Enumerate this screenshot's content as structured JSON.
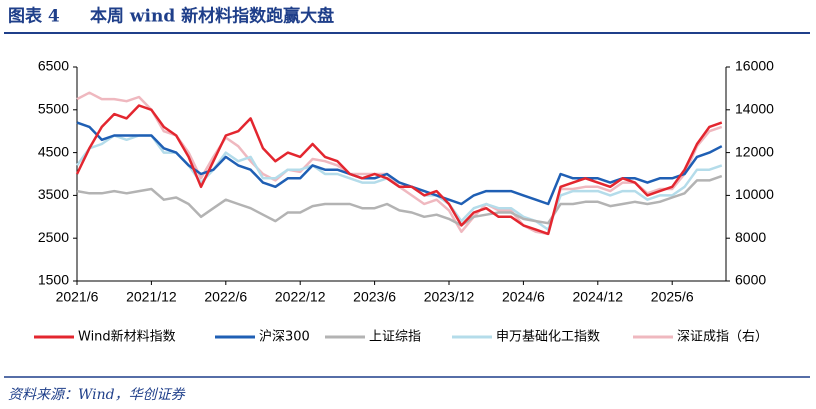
{
  "chart_data": {
    "type": "line",
    "figure_label": "图表 4",
    "title": "本周 wind 新材料指数跑赢大盘",
    "source": "资料来源：Wind，华创证券",
    "categories": [
      "2021/6",
      null,
      null,
      null,
      null,
      null,
      "2021/12",
      null,
      null,
      null,
      null,
      null,
      "2022/6",
      null,
      null,
      null,
      null,
      null,
      "2022/12",
      null,
      null,
      null,
      null,
      null,
      "2023/6",
      null,
      null,
      null,
      null,
      null,
      "2023/12",
      null,
      null,
      null,
      null,
      null,
      "2024/6",
      null,
      null,
      null,
      null,
      null,
      "2024/12",
      null,
      null,
      null,
      null,
      null,
      "2025/6",
      null,
      null,
      null,
      null
    ],
    "ylim": [
      1500,
      6500
    ],
    "yticks": [
      1500,
      2500,
      3500,
      4500,
      5500,
      6500
    ],
    "y2lim": [
      6000,
      16000
    ],
    "y2ticks": [
      6000,
      8000,
      10000,
      12000,
      14000,
      16000
    ],
    "series": [
      {
        "name": "Wind新材料指数",
        "color": "#e3262f",
        "values": [
          4000,
          4600,
          5100,
          5400,
          5300,
          5600,
          5500,
          5100,
          4900,
          4400,
          3700,
          4300,
          4900,
          5000,
          5300,
          4600,
          4300,
          4500,
          4400,
          4700,
          4400,
          4300,
          4000,
          3900,
          4000,
          3900,
          3700,
          3700,
          3500,
          3600,
          3300,
          2800,
          3100,
          3200,
          3000,
          3000,
          2800,
          2700,
          2600,
          3700,
          3800,
          3900,
          3800,
          3700,
          3900,
          3800,
          3500,
          3600,
          3700,
          4100,
          4700,
          5100,
          5200
        ]
      },
      {
        "name": "沪深300",
        "color": "#1f5fb4",
        "values": [
          5200,
          5100,
          4800,
          4900,
          4900,
          4900,
          4900,
          4600,
          4500,
          4200,
          4000,
          4100,
          4400,
          4200,
          4100,
          3800,
          3700,
          3900,
          3900,
          4200,
          4100,
          4100,
          4000,
          3900,
          3900,
          4000,
          3800,
          3700,
          3600,
          3500,
          3400,
          3300,
          3500,
          3600,
          3600,
          3600,
          3500,
          3400,
          3300,
          4000,
          3900,
          3900,
          3900,
          3800,
          3900,
          3900,
          3800,
          3900,
          3900,
          4000,
          4400,
          4500,
          4650
        ]
      },
      {
        "name": "上证综指",
        "color": "#b3b3b3",
        "values": [
          3600,
          3550,
          3550,
          3600,
          3550,
          3600,
          3650,
          3400,
          3450,
          3300,
          3000,
          3200,
          3400,
          3300,
          3200,
          3050,
          2900,
          3100,
          3100,
          3250,
          3300,
          3300,
          3300,
          3200,
          3200,
          3300,
          3150,
          3100,
          3000,
          3050,
          2950,
          2800,
          3000,
          3050,
          3100,
          3100,
          2950,
          2900,
          2850,
          3300,
          3300,
          3350,
          3350,
          3250,
          3300,
          3350,
          3300,
          3350,
          3450,
          3550,
          3850,
          3850,
          3950
        ]
      },
      {
        "name": "申万基础化工指数",
        "color": "#b4dcea",
        "values": [
          4200,
          4600,
          4700,
          4900,
          4800,
          4900,
          4900,
          4500,
          4500,
          4200,
          3800,
          4100,
          4500,
          4300,
          4400,
          3900,
          3900,
          4100,
          4100,
          4200,
          4000,
          4000,
          3900,
          3800,
          3800,
          3900,
          3700,
          3700,
          3500,
          3500,
          3300,
          2900,
          3200,
          3300,
          3200,
          3200,
          3000,
          2900,
          2700,
          3500,
          3600,
          3600,
          3600,
          3500,
          3600,
          3600,
          3400,
          3500,
          3500,
          3700,
          4100,
          4100,
          4200
        ]
      },
      {
        "name": "深证成指（右）",
        "color": "#efb8bf",
        "axis": "y2",
        "values": [
          14500,
          14800,
          14500,
          14500,
          14400,
          14600,
          14000,
          13000,
          12800,
          12000,
          10800,
          11800,
          12700,
          12300,
          11600,
          11000,
          10700,
          11200,
          11100,
          11700,
          11600,
          11400,
          11000,
          11000,
          11000,
          11000,
          10400,
          10000,
          9600,
          9800,
          9300,
          8300,
          9000,
          9600,
          9300,
          9300,
          8600,
          8300,
          8200,
          10300,
          10300,
          10400,
          10400,
          10200,
          10600,
          10600,
          10100,
          10300,
          10300,
          11000,
          12300,
          13000,
          13200
        ]
      }
    ]
  }
}
